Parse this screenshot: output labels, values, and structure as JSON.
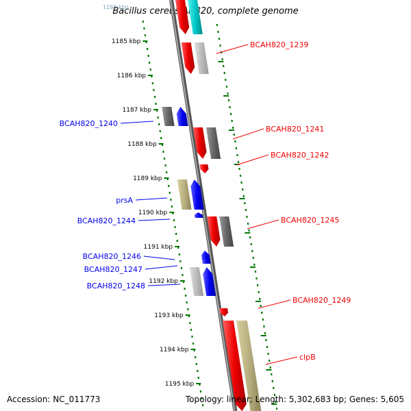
{
  "title": "Bacillus cereus AH820, complete genome",
  "footer": {
    "accession": "Accession: NC_011773",
    "summary": "Topology: linear; Length: 5,302,683 bp; Genes: 5,605"
  },
  "colors": {
    "forward": "#0000ee",
    "reverse": "#ee0000",
    "gray": "#777777",
    "silver": "#bbbbbb",
    "olive": "#b8b080",
    "cyan": "#00c8c8",
    "axis": "#888888",
    "ticks": "#007700"
  },
  "scale": {
    "partial_label": "1184 kbp",
    "labels": [
      "1185 kbp",
      "1186 kbp",
      "1187 kbp",
      "1188 kbp",
      "1189 kbp",
      "1190 kbp",
      "1191 kbp",
      "1192 kbp",
      "1193 kbp",
      "1194 kbp",
      "1195 kbp"
    ]
  },
  "forward_labels": [
    "BCAH820_1240",
    "prsA",
    "BCAH820_1244",
    "BCAH820_1246",
    "BCAH820_1247",
    "BCAH820_1248"
  ],
  "reverse_labels": [
    "BCAH820_1239",
    "BCAH820_1241",
    "BCAH820_1242",
    "BCAH820_1245",
    "BCAH820_1249",
    "clpB"
  ]
}
